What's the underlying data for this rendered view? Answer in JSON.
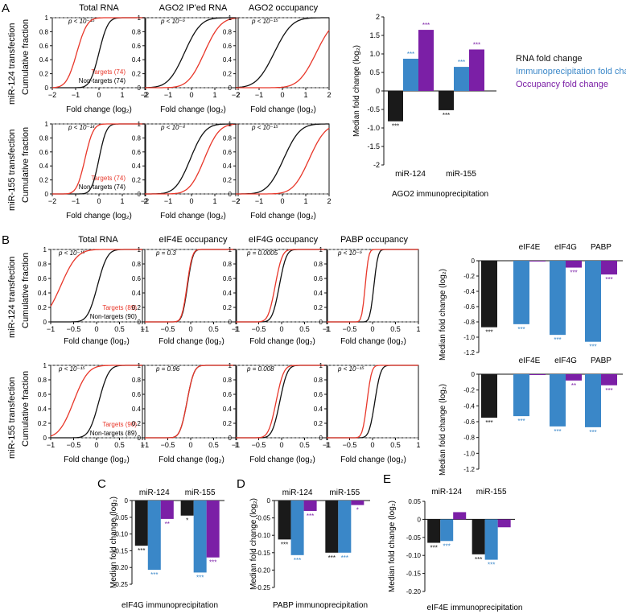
{
  "colors": {
    "targets": "#e8372a",
    "nontargets": "#111111",
    "black_bar": "#1a1a1a",
    "blue_bar": "#3a87c8",
    "purple_bar": "#7b1fa6",
    "grid_dash": "#9a9a9a"
  },
  "panel_labels": [
    "A",
    "B",
    "C",
    "D",
    "E"
  ],
  "panel_A": {
    "row_labels": [
      "miR-124 transfection",
      "miR-155 transfection"
    ],
    "col_titles": [
      "Total RNA",
      "AGO2 IP'ed RNA",
      "AGO2 occupancy"
    ],
    "ylabel": "Cumulative fraction",
    "xlabel": "Fold change (log₂)",
    "xticks": [
      "−2",
      "−1",
      "0",
      "1",
      "2"
    ],
    "yticks": [
      "0",
      "0.2",
      "0.4",
      "0.6",
      "0.8",
      "1"
    ],
    "pvalues": [
      [
        "p < 10⁻¹⁵",
        "p < 10⁻⁶",
        "p < 10⁻¹⁵"
      ],
      [
        "p < 10⁻¹⁴",
        "p < 10⁻⁴",
        "p < 10⁻¹⁵"
      ]
    ],
    "legend": [
      [
        "Targets (74)",
        "Non-targets (74)"
      ],
      [
        "Targets (74)",
        "Non-targets (74)"
      ]
    ]
  },
  "panel_B": {
    "row_labels": [
      "miR-124 transfection",
      "miR-155 transfection"
    ],
    "col_titles": [
      "Total RNA",
      "eIF4E occupancy",
      "eIF4G occupancy",
      "PABP occupancy"
    ],
    "ylabel": "Cumulative fraction",
    "xlabel": "Fold change (log₂)",
    "xticks": [
      "−1",
      "−0.5",
      "0",
      "0.5",
      "1"
    ],
    "yticks": [
      "0",
      "0.2",
      "0.4",
      "0.6",
      "0.8",
      "1"
    ],
    "pvalues": [
      [
        "p < 10⁻¹⁵",
        "p = 0.3",
        "p = 0.0005",
        "p < 10⁻⁶"
      ],
      [
        "p < 10⁻¹⁵",
        "p = 0.96",
        "p = 0.008",
        "p < 10⁻¹⁵"
      ]
    ],
    "legend": [
      [
        "Targets (89)",
        "Non-targets (90)"
      ],
      [
        "Targets (90)",
        "Non-targets (89)"
      ]
    ]
  },
  "chart_data": [
    {
      "id": "A-bars",
      "type": "bar",
      "title": "",
      "xlabel": "AGO2 immunoprecipitation",
      "ylabel": "Median fold change (log₂)",
      "ylim": [
        -2,
        2
      ],
      "yticks": [
        "2",
        "1.5",
        "1.0",
        "0.5",
        "0",
        "-0.5",
        "-1.0",
        "-1.5",
        "-2"
      ],
      "ytick_values": [
        2,
        1.5,
        1,
        0.5,
        0,
        -0.5,
        -1,
        -1.5,
        -2
      ],
      "categories": [
        "miR-124",
        "miR-155"
      ],
      "series": [
        {
          "name": "RNA fold change",
          "color": "#1a1a1a",
          "values": [
            -0.82,
            -0.52
          ],
          "stars": [
            "***",
            "***"
          ]
        },
        {
          "name": "Immunoprecipitation fold change",
          "color": "#3a87c8",
          "values": [
            0.87,
            0.65
          ],
          "stars": [
            "***",
            "***"
          ]
        },
        {
          "name": "Occupancy fold change",
          "color": "#7b1fa6",
          "values": [
            1.65,
            1.12
          ],
          "stars": [
            "***",
            "***"
          ]
        }
      ]
    },
    {
      "id": "B-bars-124",
      "type": "bar",
      "title": "",
      "xlabel": "",
      "ylabel": "Median fold change (log₂)",
      "ylim": [
        -1.2,
        0
      ],
      "yticks": [
        "0",
        "-0.2",
        "-0.4",
        "-0.6",
        "-0.8",
        "-1.0",
        "-1.2"
      ],
      "ytick_values": [
        0,
        -0.2,
        -0.4,
        -0.6,
        -0.8,
        -1,
        -1.2
      ],
      "groups": [
        {
          "label": "",
          "values": [
            -0.87
          ],
          "colors": [
            "#1a1a1a"
          ],
          "stars": [
            "***"
          ]
        },
        {
          "label": "eIF4E",
          "values": [
            -0.83,
            -0.01
          ],
          "colors": [
            "#3a87c8",
            "#7b1fa6"
          ],
          "stars": [
            "***",
            ""
          ]
        },
        {
          "label": "eIF4G",
          "values": [
            -0.97,
            -0.09
          ],
          "colors": [
            "#3a87c8",
            "#7b1fa6"
          ],
          "stars": [
            "***",
            "***"
          ]
        },
        {
          "label": "PABP",
          "values": [
            -1.06,
            -0.18
          ],
          "colors": [
            "#3a87c8",
            "#7b1fa6"
          ],
          "stars": [
            "***",
            "***"
          ]
        }
      ]
    },
    {
      "id": "B-bars-155",
      "type": "bar",
      "title": "",
      "xlabel": "",
      "ylabel": "Median fold change (log₂)",
      "ylim": [
        -1.2,
        0
      ],
      "yticks": [
        "0",
        "-0.2",
        "-0.4",
        "-0.6",
        "-0.8",
        "-1.0",
        "-1.2"
      ],
      "ytick_values": [
        0,
        -0.2,
        -0.4,
        -0.6,
        -0.8,
        -1,
        -1.2
      ],
      "groups": [
        {
          "label": "",
          "values": [
            -0.55
          ],
          "colors": [
            "#1a1a1a"
          ],
          "stars": [
            "***"
          ]
        },
        {
          "label": "eIF4E",
          "values": [
            -0.53,
            -0.01
          ],
          "colors": [
            "#3a87c8",
            "#7b1fa6"
          ],
          "stars": [
            "***",
            ""
          ]
        },
        {
          "label": "eIF4G",
          "values": [
            -0.66,
            -0.08
          ],
          "colors": [
            "#3a87c8",
            "#7b1fa6"
          ],
          "stars": [
            "***",
            "**"
          ]
        },
        {
          "label": "PABP",
          "values": [
            -0.67,
            -0.14
          ],
          "colors": [
            "#3a87c8",
            "#7b1fa6"
          ],
          "stars": [
            "***",
            "***"
          ]
        }
      ]
    },
    {
      "id": "C",
      "type": "bar",
      "title": "",
      "xlabel": "eIF4G immunoprecipitation",
      "ylabel": "Median fold change (log₂)",
      "ylim": [
        -0.25,
        0
      ],
      "yticks": [
        "0",
        "-0.05",
        "-0.10",
        "-0.15",
        "-0.20",
        "-0.25"
      ],
      "ytick_values": [
        0,
        -0.05,
        -0.1,
        -0.15,
        -0.2,
        -0.25
      ],
      "categories": [
        "miR-124",
        "miR-155"
      ],
      "series": [
        {
          "name": "RNA",
          "color": "#1a1a1a",
          "values": [
            -0.135,
            -0.045
          ],
          "stars": [
            "***",
            "*"
          ]
        },
        {
          "name": "IP",
          "color": "#3a87c8",
          "values": [
            -0.207,
            -0.215
          ],
          "stars": [
            "***",
            "***"
          ]
        },
        {
          "name": "Occupancy",
          "color": "#7b1fa6",
          "values": [
            -0.055,
            -0.17
          ],
          "stars": [
            "**",
            "***"
          ]
        }
      ]
    },
    {
      "id": "D",
      "type": "bar",
      "title": "",
      "xlabel": "PABP immunoprecipitation",
      "ylabel": "Median fold change (log₂)",
      "ylim": [
        -0.25,
        0
      ],
      "yticks": [
        "0",
        "-0.05",
        "-0.10",
        "-0.15",
        "-0.20",
        "-0.25"
      ],
      "ytick_values": [
        0,
        -0.05,
        -0.1,
        -0.15,
        -0.2,
        -0.25
      ],
      "categories": [
        "miR-124",
        "miR-155"
      ],
      "series": [
        {
          "name": "RNA",
          "color": "#1a1a1a",
          "values": [
            -0.112,
            -0.15
          ],
          "stars": [
            "***",
            "***"
          ]
        },
        {
          "name": "IP",
          "color": "#3a87c8",
          "values": [
            -0.157,
            -0.15
          ],
          "stars": [
            "***",
            "***"
          ]
        },
        {
          "name": "Occupancy",
          "color": "#7b1fa6",
          "values": [
            -0.03,
            -0.013
          ],
          "stars": [
            "***",
            "*"
          ]
        }
      ]
    },
    {
      "id": "E",
      "type": "bar",
      "title": "",
      "xlabel": "eIF4E immunoprecipitation",
      "ylabel": "Median fold change (log₂)",
      "ylim": [
        -0.2,
        0.05
      ],
      "yticks": [
        "0.05",
        "0",
        "-0.05",
        "-0.10",
        "-0.15",
        "-0.20"
      ],
      "ytick_values": [
        0.05,
        0,
        -0.05,
        -0.1,
        -0.15,
        -0.2
      ],
      "categories": [
        "miR-124",
        "miR-155"
      ],
      "series": [
        {
          "name": "RNA",
          "color": "#1a1a1a",
          "values": [
            -0.065,
            -0.097
          ],
          "stars": [
            "***",
            "***"
          ]
        },
        {
          "name": "IP",
          "color": "#3a87c8",
          "values": [
            -0.06,
            -0.112
          ],
          "stars": [
            "***",
            "***"
          ]
        },
        {
          "name": "Occupancy",
          "color": "#7b1fa6",
          "values": [
            0.02,
            -0.022
          ],
          "stars": [
            "",
            ""
          ]
        }
      ]
    },
    {
      "id": "A-cdf",
      "type": "line",
      "xlim": [
        -2,
        2
      ],
      "ylim": [
        0,
        1
      ],
      "xlabel": "Fold change (log₂)",
      "ylabel": "Cumulative fraction",
      "panels": [
        [
          {
            "t_med": -0.95,
            "t_sd": 0.35,
            "n_med": 0.0,
            "n_sd": 0.3
          },
          {
            "t_med": 0.55,
            "t_sd": 0.55,
            "n_med": -0.3,
            "n_sd": 0.55
          },
          {
            "t_med": 1.45,
            "t_sd": 0.6,
            "n_med": -0.35,
            "n_sd": 0.6
          }
        ],
        [
          {
            "t_med": -0.6,
            "t_sd": 0.28,
            "n_med": 0.0,
            "n_sd": 0.25
          },
          {
            "t_med": 0.55,
            "t_sd": 0.5,
            "n_med": -0.05,
            "n_sd": 0.5
          },
          {
            "t_med": 1.15,
            "t_sd": 0.55,
            "n_med": 0.05,
            "n_sd": 0.55
          }
        ]
      ]
    },
    {
      "id": "B-cdf",
      "type": "line",
      "xlim": [
        -1,
        1
      ],
      "ylim": [
        0,
        1
      ],
      "xlabel": "Fold change (log₂)",
      "ylabel": "Cumulative fraction",
      "panels": [
        [
          {
            "t_med": -0.78,
            "t_sd": 0.28,
            "n_med": 0.02,
            "n_sd": 0.17
          },
          {
            "t_med": -0.08,
            "t_sd": 0.09,
            "n_med": -0.07,
            "n_sd": 0.09
          },
          {
            "t_med": -0.14,
            "t_sd": 0.12,
            "n_med": -0.05,
            "n_sd": 0.12
          },
          {
            "t_med": -0.16,
            "t_sd": 0.06,
            "n_med": 0.03,
            "n_sd": 0.07
          }
        ],
        [
          {
            "t_med": -0.5,
            "t_sd": 0.25,
            "n_med": 0.05,
            "n_sd": 0.17
          },
          {
            "t_med": -0.08,
            "t_sd": 0.12,
            "n_med": -0.08,
            "n_sd": 0.12
          },
          {
            "t_med": -0.12,
            "t_sd": 0.13,
            "n_med": -0.04,
            "n_sd": 0.13
          },
          {
            "t_med": -0.12,
            "t_sd": 0.08,
            "n_med": 0.05,
            "n_sd": 0.1
          }
        ]
      ]
    }
  ],
  "legend_A": [
    "RNA fold change",
    "Immunoprecipitation fold change",
    "Occupancy fold change"
  ],
  "group_labels": {
    "mir124": "miR-124",
    "mir155": "miR-155"
  }
}
